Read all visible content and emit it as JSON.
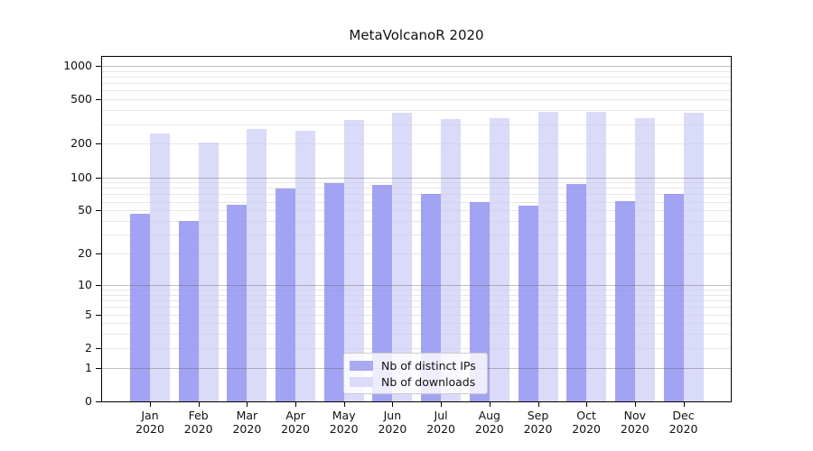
{
  "title": "MetaVolcanoR 2020",
  "chart_data": {
    "type": "bar",
    "title": "MetaVolcanoR 2020",
    "categories": [
      "Jan",
      "Feb",
      "Mar",
      "Apr",
      "May",
      "Jun",
      "Jul",
      "Aug",
      "Sep",
      "Oct",
      "Nov",
      "Dec"
    ],
    "category_year": "2020",
    "series": [
      {
        "name": "Nb of distinct IPs",
        "color": "rgba(143,143,240,0.82)",
        "legend_color": "#a9a9f0",
        "values": [
          47,
          40,
          56,
          79,
          89,
          85,
          70,
          60,
          55,
          87,
          61,
          71
        ]
      },
      {
        "name": "Nb of downloads",
        "color": "rgba(199,199,246,0.66)",
        "legend_color": "#dcdcf9",
        "values": [
          248,
          205,
          270,
          263,
          325,
          380,
          331,
          337,
          387,
          384,
          343,
          377
        ]
      }
    ],
    "xlabel": "",
    "ylabel": "",
    "y_scale": "log1p",
    "y_ticks": [
      0,
      1,
      2,
      5,
      10,
      20,
      50,
      100,
      200,
      500,
      1000
    ],
    "ylim": [
      0,
      1203
    ],
    "grid": "horizontal log minor + major decades",
    "legend_position": "bottom-center-inside"
  }
}
